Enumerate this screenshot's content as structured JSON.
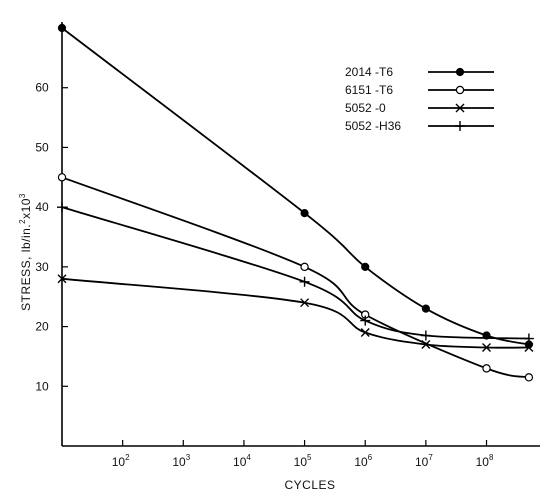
{
  "chart_data": {
    "type": "line",
    "title": "",
    "xlabel": "CYCLES",
    "ylabel": "STRESS, lb/in.²x10³",
    "ylabel_parts": {
      "base": "STRESS, lb/in.",
      "sup1": "2",
      "mid": "x10",
      "sup2": "3"
    },
    "x_scale": "log",
    "xlim": [
      10,
      562341325
    ],
    "ylim": [
      0,
      70
    ],
    "x_ticks": [
      100,
      1000,
      10000,
      100000,
      1000000,
      10000000,
      100000000
    ],
    "x_tick_labels": [
      {
        "base": "10",
        "exp": "2"
      },
      {
        "base": "10",
        "exp": "3"
      },
      {
        "base": "10",
        "exp": "4"
      },
      {
        "base": "10",
        "exp": "5"
      },
      {
        "base": "10",
        "exp": "6"
      },
      {
        "base": "10",
        "exp": "7"
      },
      {
        "base": "10",
        "exp": "8"
      }
    ],
    "y_ticks": [
      10,
      20,
      30,
      40,
      50,
      60
    ],
    "y_tick_labels": [
      "10",
      "20",
      "30",
      "40",
      "50",
      "60"
    ],
    "grid": false,
    "legend_position": "top-right",
    "series": [
      {
        "name": "2014 -T6",
        "marker": "filled-circle",
        "x": [
          10,
          100000,
          1000000,
          10000000,
          100000000,
          500000000
        ],
        "y": [
          70,
          39,
          30,
          23,
          18.5,
          17
        ]
      },
      {
        "name": "6151 -T6",
        "marker": "open-circle",
        "x": [
          10,
          100000,
          1000000,
          100000000,
          500000000
        ],
        "y": [
          45,
          30,
          22,
          13,
          11.5
        ]
      },
      {
        "name": "5052 -0",
        "marker": "cross",
        "x": [
          10,
          100000,
          1000000,
          10000000,
          100000000,
          500000000
        ],
        "y": [
          28,
          24,
          19,
          17,
          16.5,
          16.5
        ]
      },
      {
        "name": "5052 -H36",
        "marker": "plus",
        "x": [
          10,
          100000,
          1000000,
          10000000,
          500000000
        ],
        "y": [
          40,
          27.5,
          21,
          18.5,
          18
        ]
      }
    ]
  }
}
